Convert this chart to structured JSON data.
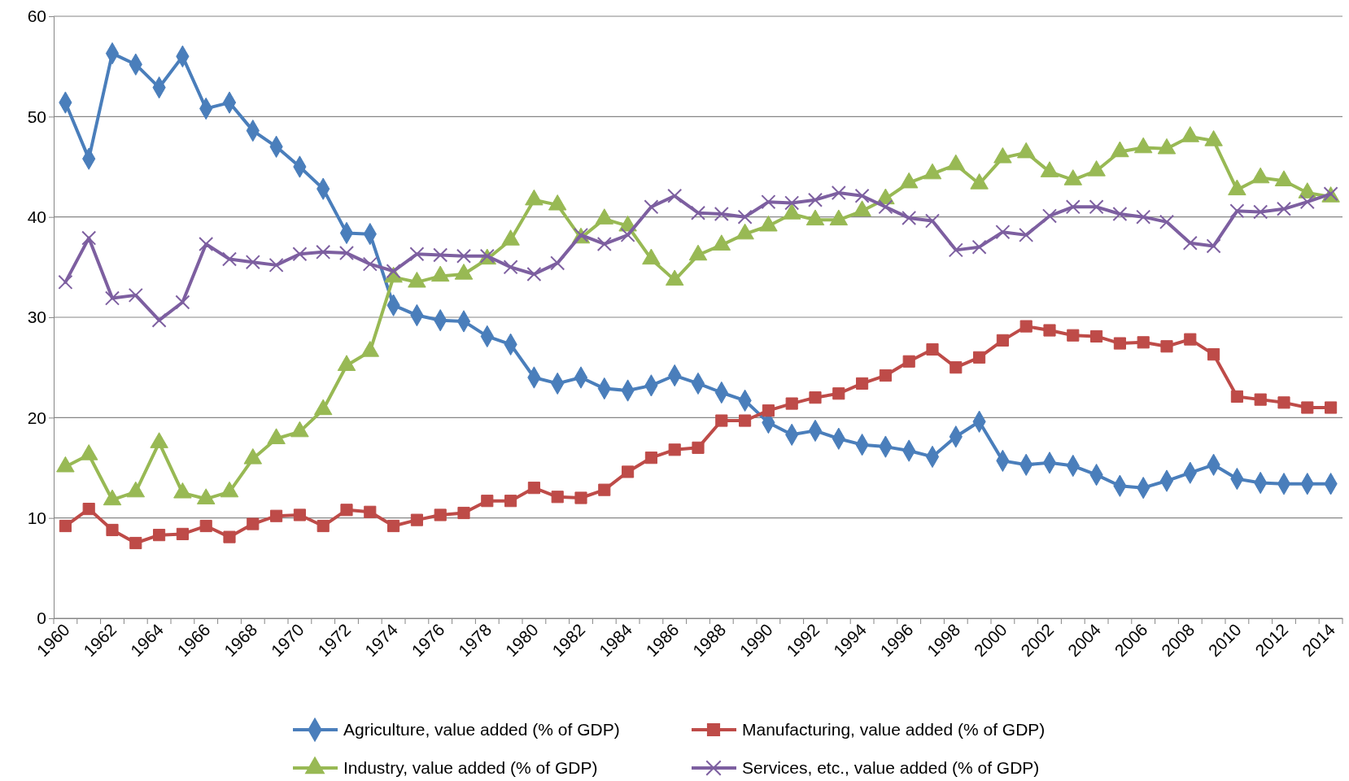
{
  "chart_data": {
    "type": "line",
    "categories": [
      "1960",
      null,
      "1962",
      null,
      "1964",
      null,
      "1966",
      null,
      "1968",
      null,
      "1970",
      null,
      "1972",
      null,
      "1974",
      null,
      "1976",
      null,
      "1978",
      null,
      "1980",
      null,
      "1982",
      null,
      "1984",
      null,
      "1986",
      null,
      "1988",
      null,
      "1990",
      null,
      "1992",
      null,
      "1994",
      null,
      "1996",
      null,
      "1998",
      null,
      "2000",
      null,
      "2002",
      null,
      "2004",
      null,
      "2006",
      null,
      "2008",
      null,
      "2010",
      null,
      "2012",
      null,
      "2014"
    ],
    "ylim": [
      0,
      60
    ],
    "yticks": [
      0,
      10,
      20,
      30,
      40,
      50,
      60
    ],
    "grid": "y",
    "legend": "bottom",
    "line_style": "solid",
    "series": [
      {
        "name": "Agriculture, value added (% of GDP)",
        "color": "#4a7ebb",
        "marker": "diamond",
        "values": [
          51.4,
          45.8,
          56.3,
          55.2,
          52.9,
          56.0,
          50.8,
          51.4,
          48.6,
          47.0,
          45.0,
          42.8,
          38.4,
          38.3,
          31.2,
          30.2,
          29.7,
          29.6,
          28.1,
          27.3,
          24.0,
          23.4,
          24.0,
          22.9,
          22.7,
          23.2,
          24.2,
          23.4,
          22.5,
          21.7,
          19.5,
          18.3,
          18.7,
          17.9,
          17.3,
          17.1,
          16.7,
          16.1,
          18.1,
          19.6,
          15.7,
          15.3,
          15.5,
          15.2,
          14.3,
          13.2,
          13.0,
          13.7,
          14.5,
          15.3,
          13.9,
          13.5,
          13.4,
          13.4,
          13.4
        ]
      },
      {
        "name": "Manufacturing, value added (% of GDP)",
        "color": "#be4b48",
        "marker": "square",
        "values": [
          9.2,
          10.9,
          8.8,
          7.5,
          8.3,
          8.4,
          9.2,
          8.1,
          9.4,
          10.2,
          10.3,
          9.2,
          10.8,
          10.6,
          9.2,
          9.8,
          10.3,
          10.5,
          11.7,
          11.7,
          13.0,
          12.1,
          12.0,
          12.8,
          14.6,
          16.0,
          16.8,
          17.0,
          19.7,
          19.7,
          20.7,
          21.4,
          22.0,
          22.4,
          23.4,
          24.2,
          25.6,
          26.8,
          25.0,
          26.0,
          27.7,
          29.1,
          28.7,
          28.2,
          28.1,
          27.4,
          27.5,
          27.1,
          27.8,
          26.3,
          22.1,
          21.8,
          21.5,
          21.0,
          21.0
        ]
      },
      {
        "name": "Industry, value added (% of GDP)",
        "color": "#98b954",
        "marker": "triangle",
        "values": [
          15.1,
          16.3,
          11.8,
          12.6,
          17.5,
          12.5,
          11.9,
          12.6,
          15.9,
          17.9,
          18.6,
          20.8,
          25.2,
          26.6,
          34.0,
          33.5,
          34.1,
          34.3,
          35.8,
          37.7,
          41.7,
          41.2,
          37.9,
          39.8,
          39.1,
          35.8,
          33.7,
          36.2,
          37.2,
          38.3,
          39.1,
          40.3,
          39.7,
          39.7,
          40.6,
          41.8,
          43.4,
          44.3,
          45.2,
          43.3,
          45.9,
          46.4,
          44.5,
          43.7,
          44.6,
          46.5,
          46.9,
          46.8,
          48.0,
          47.6,
          42.7,
          43.9,
          43.6,
          42.4,
          42.0
        ]
      },
      {
        "name": "Services, etc., value added (% of GDP)",
        "color": "#7d5fa0",
        "marker": "cross",
        "values": [
          33.5,
          37.9,
          31.9,
          32.2,
          29.7,
          31.5,
          37.3,
          35.8,
          35.5,
          35.2,
          36.3,
          36.5,
          36.4,
          35.3,
          34.6,
          36.3,
          36.2,
          36.1,
          36.1,
          35.0,
          34.3,
          35.4,
          38.2,
          37.3,
          38.2,
          41.0,
          42.1,
          40.4,
          40.3,
          40.0,
          41.5,
          41.4,
          41.7,
          42.4,
          42.1,
          41.0,
          39.9,
          39.6,
          36.7,
          37.0,
          38.5,
          38.2,
          40.1,
          41.0,
          41.0,
          40.3,
          40.0,
          39.5,
          37.4,
          37.1,
          40.6,
          40.5,
          40.8,
          41.5,
          42.3
        ]
      }
    ]
  }
}
